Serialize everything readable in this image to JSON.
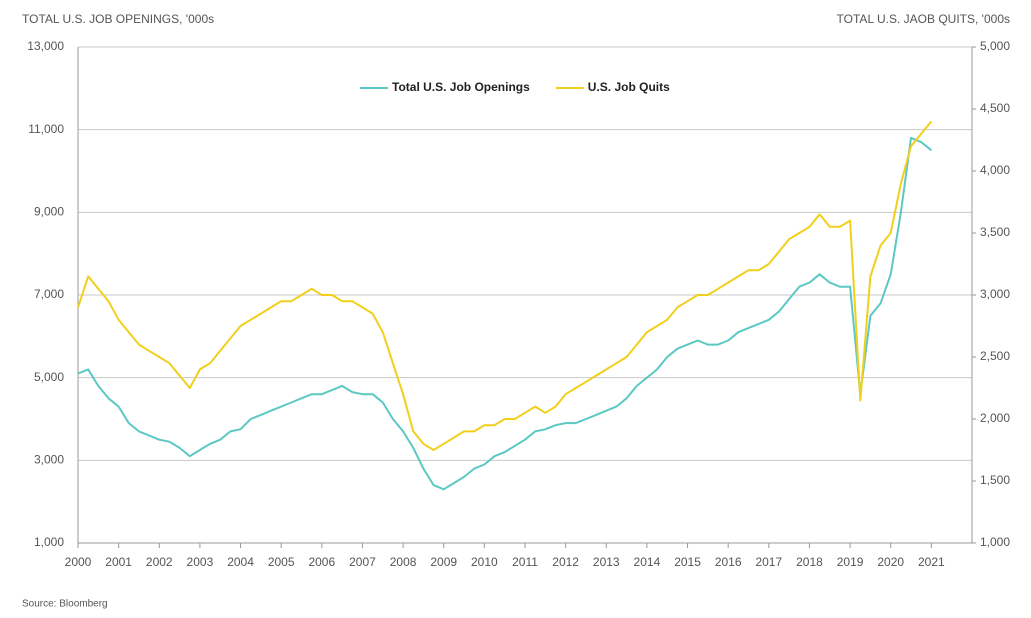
{
  "chart_data": {
    "type": "line",
    "title_left": "TOTAL U.S. JOB OPENINGS, '000s",
    "title_right": "TOTAL U.S. JAOB QUITS, '000s",
    "source": "Source: Bloomberg",
    "xlim": [
      2000,
      2022
    ],
    "xticks": [
      2000,
      2001,
      2002,
      2003,
      2004,
      2005,
      2006,
      2007,
      2008,
      2009,
      2010,
      2011,
      2012,
      2013,
      2014,
      2015,
      2016,
      2017,
      2018,
      2019,
      2020,
      2021
    ],
    "ylim": [
      1000,
      13000
    ],
    "yticks": [
      {
        "value": 1000,
        "label": "1,000"
      },
      {
        "value": 3000,
        "label": "3,000"
      },
      {
        "value": 5000,
        "label": "5,000"
      },
      {
        "value": 7000,
        "label": "7,000"
      },
      {
        "value": 9000,
        "label": "9,000"
      },
      {
        "value": 11000,
        "label": "11,000"
      },
      {
        "value": 13000,
        "label": "13,000"
      }
    ],
    "y2lim": [
      1000,
      5000
    ],
    "y2ticks": [
      {
        "value": 1000,
        "label": "1,000"
      },
      {
        "value": 1500,
        "label": "1,500"
      },
      {
        "value": 2000,
        "label": "2,000"
      },
      {
        "value": 2500,
        "label": "2,500"
      },
      {
        "value": 3000,
        "label": "3,000"
      },
      {
        "value": 3500,
        "label": "3,500"
      },
      {
        "value": 4000,
        "label": "4,000"
      },
      {
        "value": 4500,
        "label": "4,500"
      },
      {
        "value": 5000,
        "label": "5,000"
      }
    ],
    "grid": true,
    "legend": "top",
    "x": [
      2000,
      2000.25,
      2000.5,
      2000.75,
      2001,
      2001.25,
      2001.5,
      2001.75,
      2002,
      2002.25,
      2002.5,
      2002.75,
      2003,
      2003.25,
      2003.5,
      2003.75,
      2004,
      2004.25,
      2004.5,
      2004.75,
      2005,
      2005.25,
      2005.5,
      2005.75,
      2006,
      2006.25,
      2006.5,
      2006.75,
      2007,
      2007.25,
      2007.5,
      2007.75,
      2008,
      2008.25,
      2008.5,
      2008.75,
      2009,
      2009.25,
      2009.5,
      2009.75,
      2010,
      2010.25,
      2010.5,
      2010.75,
      2011,
      2011.25,
      2011.5,
      2011.75,
      2012,
      2012.25,
      2012.5,
      2012.75,
      2013,
      2013.25,
      2013.5,
      2013.75,
      2014,
      2014.25,
      2014.5,
      2014.75,
      2015,
      2015.25,
      2015.5,
      2015.75,
      2016,
      2016.25,
      2016.5,
      2016.75,
      2017,
      2017.25,
      2017.5,
      2017.75,
      2018,
      2018.25,
      2018.5,
      2018.75,
      2019,
      2019.25,
      2019.5,
      2019.75,
      2020,
      2020.25,
      2020.5,
      2020.75,
      2021
    ],
    "series": [
      {
        "name": "Total U.S. Job Openings",
        "color": "#5bc8c4",
        "axis": "y",
        "values": [
          5100,
          5200,
          4800,
          4500,
          4300,
          3900,
          3700,
          3600,
          3500,
          3450,
          3300,
          3100,
          3250,
          3400,
          3500,
          3700,
          3750,
          4000,
          4100,
          4200,
          4300,
          4400,
          4500,
          4600,
          4600,
          4700,
          4800,
          4650,
          4600,
          4600,
          4400,
          4000,
          3700,
          3300,
          2800,
          2400,
          2300,
          2450,
          2600,
          2800,
          2900,
          3100,
          3200,
          3350,
          3500,
          3700,
          3750,
          3850,
          3900,
          3900,
          4000,
          4100,
          4200,
          4300,
          4500,
          4800,
          5000,
          5200,
          5500,
          5700,
          5800,
          5900,
          5800,
          5800,
          5900,
          6100,
          6200,
          6300,
          6400,
          6600,
          6900,
          7200,
          7300,
          7500,
          7300,
          7200,
          7200,
          4600,
          6500,
          6800,
          7500,
          9000,
          10800,
          10700,
          10500
        ]
      },
      {
        "name": "U.S. Job Quits",
        "color": "#f2cf1b",
        "axis": "y2",
        "values": [
          2900,
          3150,
          3050,
          2950,
          2800,
          2700,
          2600,
          2550,
          2500,
          2450,
          2350,
          2250,
          2400,
          2450,
          2550,
          2650,
          2750,
          2800,
          2850,
          2900,
          2950,
          2950,
          3000,
          3050,
          3000,
          3000,
          2950,
          2950,
          2900,
          2850,
          2700,
          2450,
          2200,
          1900,
          1800,
          1750,
          1800,
          1850,
          1900,
          1900,
          1950,
          1950,
          2000,
          2000,
          2050,
          2100,
          2050,
          2100,
          2200,
          2250,
          2300,
          2350,
          2400,
          2450,
          2500,
          2600,
          2700,
          2750,
          2800,
          2900,
          2950,
          3000,
          3000,
          3050,
          3100,
          3150,
          3200,
          3200,
          3250,
          3350,
          3450,
          3500,
          3550,
          3650,
          3550,
          3550,
          3600,
          2150,
          3150,
          3400,
          3500,
          3900,
          4200,
          4300,
          4400
        ]
      }
    ]
  }
}
